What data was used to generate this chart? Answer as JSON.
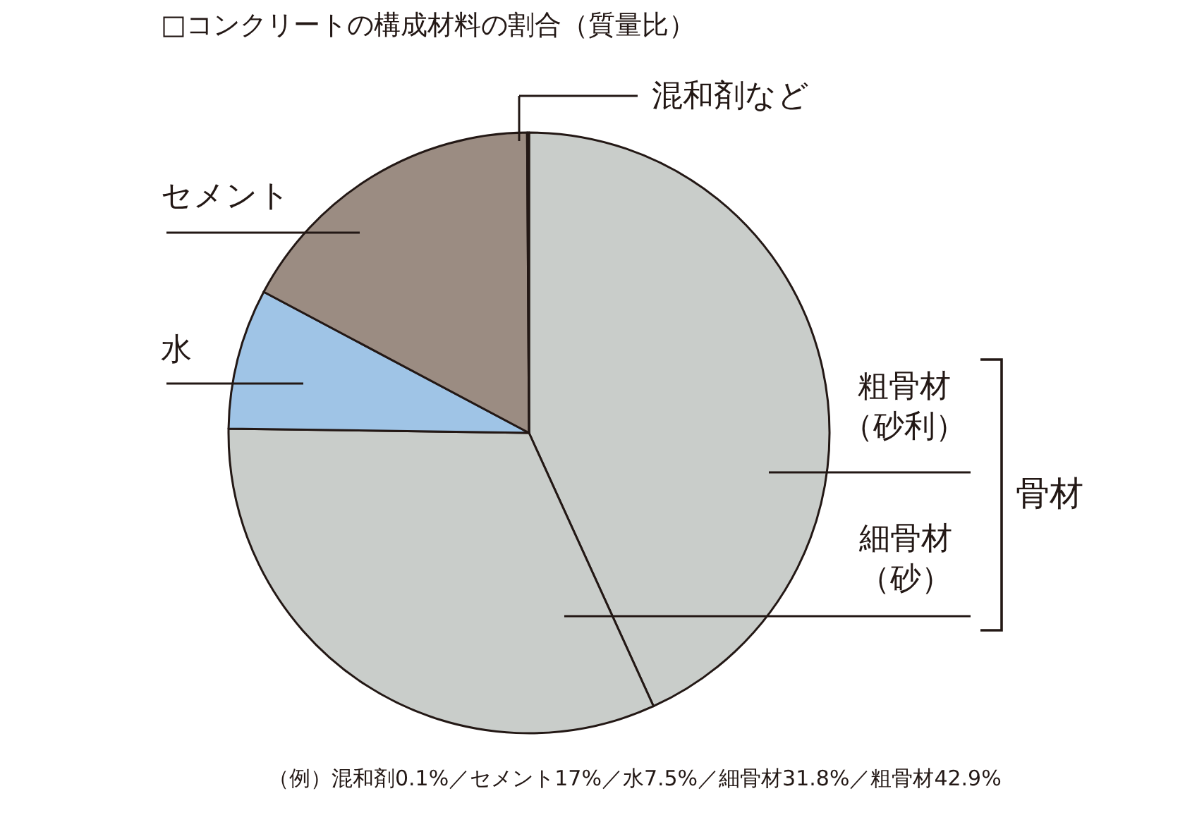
{
  "chart_data": {
    "type": "pie",
    "title": "□コンクリートの構成材料の割合（質量比）",
    "categories": [
      "粗骨材（砂利）",
      "細骨材（砂）",
      "水",
      "セメント",
      "混和剤など"
    ],
    "values": [
      42.9,
      31.8,
      7.5,
      17,
      0.1
    ],
    "colors": [
      "#c9cdca",
      "#c9cdca",
      "#9fc4e6",
      "#9b8c82",
      "#c9c08c"
    ],
    "annotations": [
      "骨材",
      "（例）混和剤0.1%／セメント17%／水7.5%／細骨材31.8%／粗骨材42.9%"
    ],
    "legend": false
  }
}
